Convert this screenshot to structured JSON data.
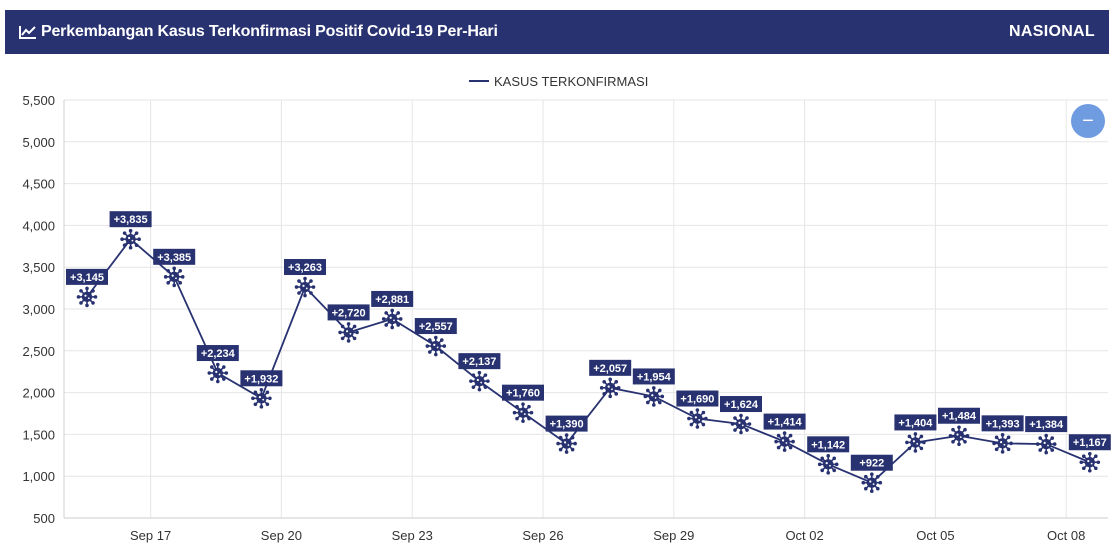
{
  "header": {
    "title": "Perkembangan Kasus Terkonfirmasi Positif Covid-19 Per-Hari",
    "scope_label": "NASIONAL",
    "background_color": "#283270",
    "title_icon": "line-chart-icon"
  },
  "zoom_button": {
    "label": "−",
    "icon": "minus-icon",
    "color": "#6f9be0"
  },
  "chart_data": {
    "type": "line",
    "title": "",
    "xlabel": "",
    "ylabel": "",
    "ylim": [
      500,
      5500
    ],
    "yticks": [
      500,
      1000,
      1500,
      2000,
      2500,
      3000,
      3500,
      4000,
      4500,
      5000,
      5500
    ],
    "ytick_labels": [
      "500",
      "1,000",
      "1,500",
      "2,000",
      "2,500",
      "3,000",
      "3,500",
      "4,000",
      "4,500",
      "5,000",
      "5,500"
    ],
    "x": [
      "Sep 16",
      "Sep 17",
      "Sep 18",
      "Sep 19",
      "Sep 20",
      "Sep 21",
      "Sep 22",
      "Sep 23",
      "Sep 24",
      "Sep 25",
      "Sep 26",
      "Sep 27",
      "Sep 28",
      "Sep 29",
      "Sep 30",
      "Oct 01",
      "Oct 02",
      "Oct 03",
      "Oct 04",
      "Oct 05",
      "Oct 06",
      "Oct 07",
      "Oct 08",
      "Oct 09"
    ],
    "xtick_labels": [
      "Sep 17",
      "Sep 20",
      "Sep 23",
      "Sep 26",
      "Sep 29",
      "Oct 02",
      "Oct 05",
      "Oct 08"
    ],
    "xtick_indices": [
      1,
      4,
      7,
      10,
      13,
      16,
      19,
      22
    ],
    "grid": true,
    "legend_position": "top-center",
    "series": [
      {
        "name": "KASUS TERKONFIRMASI",
        "color": "#283270",
        "marker": "virus-icon",
        "values": [
          3145,
          3835,
          3385,
          2234,
          1932,
          3263,
          2720,
          2881,
          2557,
          2137,
          1760,
          1390,
          2057,
          1954,
          1690,
          1624,
          1414,
          1142,
          922,
          1404,
          1484,
          1393,
          1384,
          1167
        ],
        "data_labels": [
          "+3,145",
          "+3,835",
          "+3,385",
          "+2,234",
          "+1,932",
          "+3,263",
          "+2,720",
          "+2,881",
          "+2,557",
          "+2,137",
          "+1,760",
          "+1,390",
          "+2,057",
          "+1,954",
          "+1,690",
          "+1,624",
          "+1,414",
          "+1,142",
          "+922",
          "+1,404",
          "+1,484",
          "+1,393",
          "+1,384",
          "+1,167"
        ]
      }
    ]
  }
}
